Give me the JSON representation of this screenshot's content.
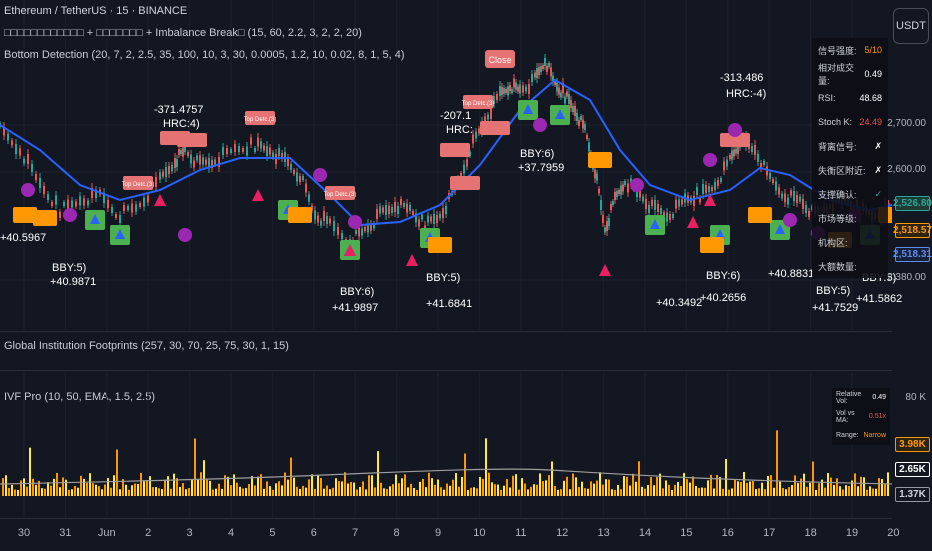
{
  "header": {
    "symbol_line": "Ethereum / TetherUS · 15 · BINANCE",
    "indicator1": "□□□□□□□□□□□□ + □□□□□□□ + Imbalance Break□ (15, 60, 2.2, 3, 2, 2, 20)",
    "indicator2": "Bottom Detection (20, 7, 2, 2.5, 35, 100, 10, 3, 30, 0.0005, 1.2, 10, 0.02, 8, 1, 5, 4)",
    "indicator3": "Global Institution Footprints (257, 30, 70, 25, 75, 30, 1, 15)",
    "indicator4": "IVF Pro (10, 50, EMA, 1.5, 2.5)"
  },
  "currency_button": "USDT",
  "price_axis": {
    "ticks": [
      "2,700.00",
      "2,600.00",
      "2,380.00"
    ],
    "tags": [
      {
        "label": "2,526.80",
        "bg": "#1f3b34",
        "fg": "#26a69a",
        "border": "#26a69a"
      },
      {
        "label": "2,518.57",
        "bg": "#2b2416",
        "fg": "#ff9800",
        "border": "#ff9800"
      },
      {
        "label": "2,518.31",
        "bg": "#172036",
        "fg": "#5b8def",
        "border": "#5b8def"
      }
    ]
  },
  "volume_axis": {
    "ticks": [
      "80 K"
    ],
    "tags": [
      {
        "label": "3.98K",
        "bg": "#2b2416",
        "fg": "#ff9800",
        "border": "#ff9800"
      },
      {
        "label": "2.65K",
        "bg": "#131722",
        "fg": "#ffffff",
        "border": "#ffffff"
      },
      {
        "label": "1.37K",
        "bg": "#131722",
        "fg": "#d1d4dc",
        "border": "#9598a1"
      }
    ]
  },
  "stats_table": [
    {
      "key": "信号强度:",
      "value": "5/10",
      "color": "#ff9800"
    },
    {
      "key": "相对成交量:",
      "value": "0.49",
      "color": "#ffffff"
    },
    {
      "key": "RSI:",
      "value": "48.68",
      "color": "#ffffff"
    },
    {
      "key": "Stoch K:",
      "value": "24.49",
      "color": "#ef5350"
    },
    {
      "key": "背离信号:",
      "value": "✗",
      "color": "#ffffff"
    },
    {
      "key": "失衡区附近:",
      "value": "✗",
      "color": "#ffffff"
    },
    {
      "key": "支撑确认:",
      "value": "✓",
      "color": "#26a69a"
    },
    {
      "key": "市场等级:",
      "value": "",
      "color": "#ffffff"
    },
    {
      "key": "机构区:",
      "value": "",
      "color": "#ffffff"
    },
    {
      "key": "大额数量:",
      "value": "",
      "color": "#ffffff"
    }
  ],
  "ivf_table": [
    {
      "key": "Relative Vol:",
      "value": "0.49",
      "color": "#ffffff"
    },
    {
      "key": "Vol vs MA:",
      "value": "0.51x",
      "color": "#ef5350"
    },
    {
      "key": "Range:",
      "value": "Narrow",
      "color": "#ff9800"
    }
  ],
  "time_axis": [
    "30",
    "31",
    "Jun",
    "2",
    "3",
    "4",
    "5",
    "6",
    "7",
    "8",
    "9",
    "10",
    "11",
    "12",
    "13",
    "14",
    "15",
    "16",
    "17",
    "18",
    "19",
    "20"
  ],
  "annotations": {
    "hrc_labels": [
      {
        "value": "-371.4757",
        "sub": "HRC:4)"
      },
      {
        "value": "-207.1",
        "sub": "HRC:"
      },
      {
        "value": "-313.486",
        "sub": "HRC:-4)"
      }
    ],
    "bby_labels": [
      {
        "value": "BBY:5)",
        "sub": "+40.9871"
      },
      {
        "value": "BBY:5)",
        "sub": "+40.5967"
      },
      {
        "value": "BBY:6)",
        "sub": "+41.9897"
      },
      {
        "value": "BBY:5)",
        "sub": "+41.6841"
      },
      {
        "value": "BBY:6)",
        "sub": "+37.7959"
      },
      {
        "value": "BBY:6)",
        "sub": "+40.2656"
      },
      {
        "value": "BBY:5)",
        "sub": "+41.7529"
      },
      {
        "value": "BBY:5)",
        "sub": "+41.5862"
      },
      {
        "value": "BBY:5)",
        "sub": "+40.3492"
      },
      {
        "value": "BBY:5)",
        "sub": "+40.8831"
      }
    ],
    "top_detect_label": "Top Detc.(3)",
    "close_label": "Close",
    "long_label": "Long",
    "weak_label": "Weak"
  }
}
